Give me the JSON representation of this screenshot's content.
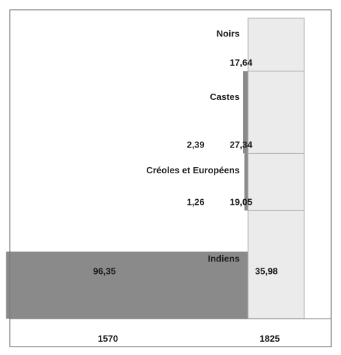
{
  "chart_data": {
    "type": "bar",
    "subtype": "stacked-variable-width",
    "categories": [
      "1570",
      "1825"
    ],
    "series": [
      {
        "name": "Indiens",
        "values": [
          96.35,
          35.98
        ],
        "labels": [
          "96,35",
          "35,98"
        ]
      },
      {
        "name": "Créoles et Européens",
        "values": [
          1.26,
          19.05
        ],
        "labels": [
          "1,26",
          "19,05"
        ]
      },
      {
        "name": "Castes",
        "values": [
          2.39,
          27.34
        ],
        "labels": [
          "2,39",
          "27,34"
        ]
      },
      {
        "name": "Noirs",
        "values": [
          0,
          17.64
        ],
        "labels": [
          "",
          "17,64"
        ]
      }
    ],
    "colors": {
      "1570": "#8a8a8a",
      "1825": "#ebebeb",
      "edge": "#b0b0b0",
      "frame": "#7a7a7a"
    },
    "title": "",
    "xlabel": "",
    "ylabel": "",
    "legend": "none",
    "grid": false
  }
}
